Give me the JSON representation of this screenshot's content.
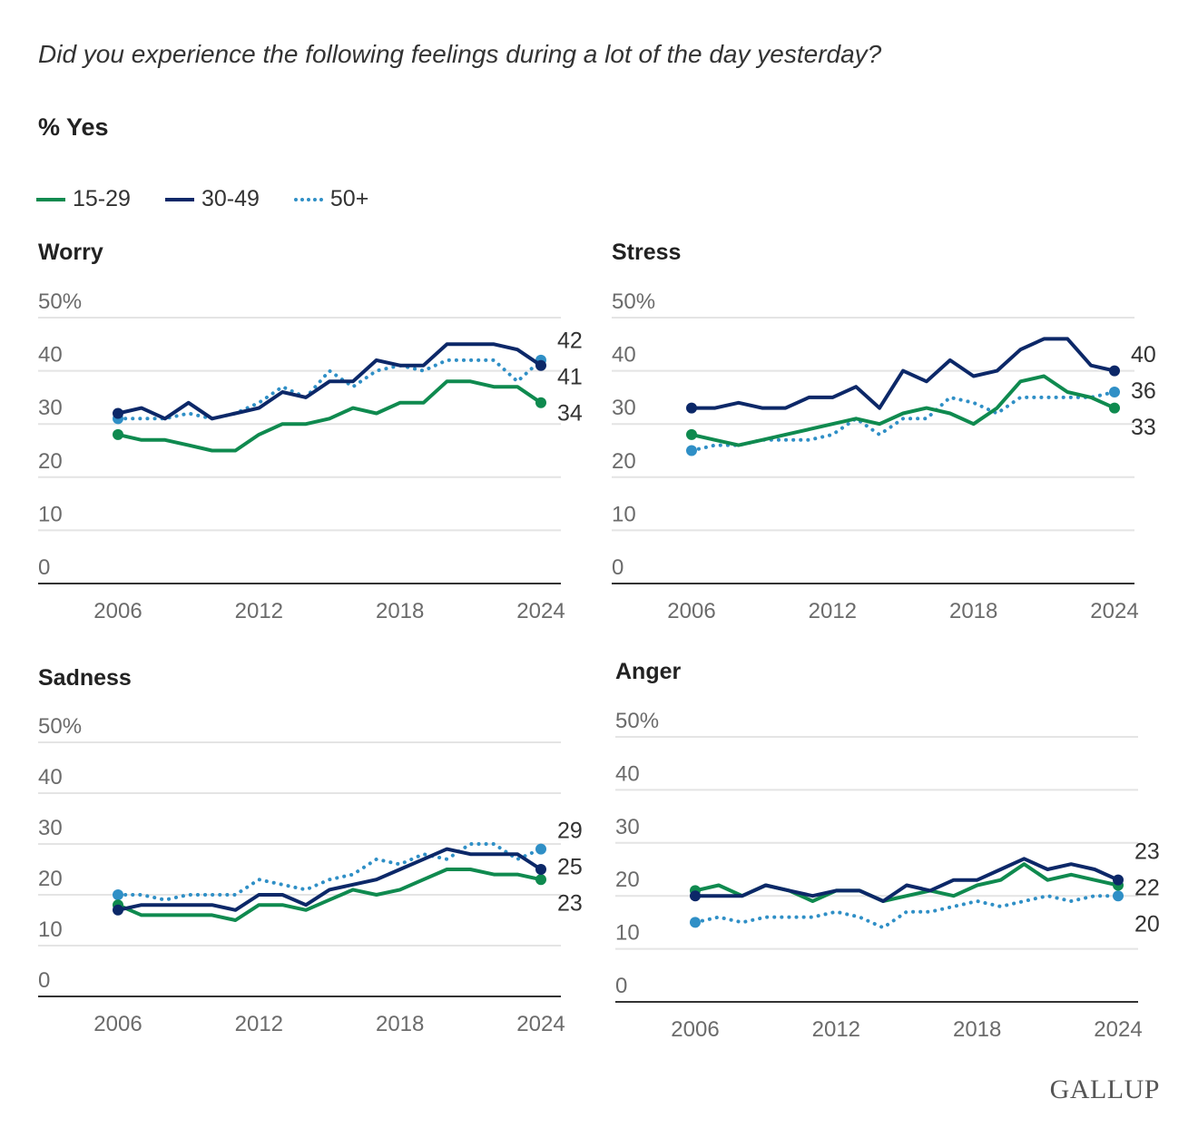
{
  "question": "Did you experience the following feelings during a lot of the day yesterday?",
  "unit_label": "% Yes",
  "logo_text": "GALLUP",
  "legend": [
    {
      "label": "15-29",
      "color": "#0f8a4f",
      "style": "solid"
    },
    {
      "label": "30-49",
      "color": "#0c2868",
      "style": "solid"
    },
    {
      "label": "50+",
      "color": "#2f8fc6",
      "style": "dotted"
    }
  ],
  "chart_data": [
    {
      "type": "line",
      "title": "Worry",
      "ylim": [
        0,
        50
      ],
      "yticks": [
        "0",
        "10",
        "20",
        "30",
        "40",
        "50%"
      ],
      "xticks": [
        "2006",
        "2012",
        "2018",
        "2024"
      ],
      "x": [
        2006,
        2007,
        2008,
        2009,
        2010,
        2011,
        2012,
        2013,
        2014,
        2015,
        2016,
        2017,
        2018,
        2019,
        2020,
        2021,
        2022,
        2023,
        2024
      ],
      "series": [
        {
          "name": "15-29",
          "values": [
            28,
            27,
            27,
            26,
            25,
            25,
            28,
            30,
            30,
            31,
            33,
            32,
            34,
            34,
            38,
            38,
            37,
            37,
            34
          ],
          "end_label": "34"
        },
        {
          "name": "30-49",
          "values": [
            32,
            33,
            31,
            34,
            31,
            32,
            33,
            36,
            35,
            38,
            38,
            42,
            41,
            41,
            45,
            45,
            45,
            44,
            41
          ],
          "end_label": "41"
        },
        {
          "name": "50+",
          "values": [
            31,
            31,
            31,
            32,
            31,
            32,
            34,
            37,
            35,
            40,
            37,
            40,
            41,
            40,
            42,
            42,
            42,
            38,
            42
          ],
          "end_label": "42"
        }
      ]
    },
    {
      "type": "line",
      "title": "Stress",
      "ylim": [
        0,
        50
      ],
      "yticks": [
        "0",
        "10",
        "20",
        "30",
        "40",
        "50%"
      ],
      "xticks": [
        "2006",
        "2012",
        "2018",
        "2024"
      ],
      "x": [
        2006,
        2007,
        2008,
        2009,
        2010,
        2011,
        2012,
        2013,
        2014,
        2015,
        2016,
        2017,
        2018,
        2019,
        2020,
        2021,
        2022,
        2023,
        2024
      ],
      "series": [
        {
          "name": "15-29",
          "values": [
            28,
            27,
            26,
            27,
            28,
            29,
            30,
            31,
            30,
            32,
            33,
            32,
            30,
            33,
            38,
            39,
            36,
            35,
            33
          ],
          "end_label": "33"
        },
        {
          "name": "30-49",
          "values": [
            33,
            33,
            34,
            33,
            33,
            35,
            35,
            37,
            33,
            40,
            38,
            42,
            39,
            40,
            44,
            46,
            46,
            41,
            40
          ],
          "end_label": "40"
        },
        {
          "name": "50+",
          "values": [
            25,
            26,
            26,
            27,
            27,
            27,
            28,
            31,
            28,
            31,
            31,
            35,
            34,
            32,
            35,
            35,
            35,
            35,
            36
          ],
          "end_label": "36"
        }
      ]
    },
    {
      "type": "line",
      "title": "Sadness",
      "ylim": [
        0,
        50
      ],
      "yticks": [
        "0",
        "10",
        "20",
        "30",
        "40",
        "50%"
      ],
      "xticks": [
        "2006",
        "2012",
        "2018",
        "2024"
      ],
      "x": [
        2006,
        2007,
        2008,
        2009,
        2010,
        2011,
        2012,
        2013,
        2014,
        2015,
        2016,
        2017,
        2018,
        2019,
        2020,
        2021,
        2022,
        2023,
        2024
      ],
      "series": [
        {
          "name": "15-29",
          "values": [
            18,
            16,
            16,
            16,
            16,
            15,
            18,
            18,
            17,
            19,
            21,
            20,
            21,
            23,
            25,
            25,
            24,
            24,
            23
          ],
          "end_label": "23"
        },
        {
          "name": "30-49",
          "values": [
            17,
            18,
            18,
            18,
            18,
            17,
            20,
            20,
            18,
            21,
            22,
            23,
            25,
            27,
            29,
            28,
            28,
            28,
            25
          ],
          "end_label": "25"
        },
        {
          "name": "50+",
          "values": [
            20,
            20,
            19,
            20,
            20,
            20,
            23,
            22,
            21,
            23,
            24,
            27,
            26,
            28,
            27,
            30,
            30,
            27,
            29
          ],
          "end_label": "29"
        }
      ]
    },
    {
      "type": "line",
      "title": "Anger",
      "ylim": [
        0,
        50
      ],
      "yticks": [
        "0",
        "10",
        "20",
        "30",
        "40",
        "50%"
      ],
      "xticks": [
        "2006",
        "2012",
        "2018",
        "2024"
      ],
      "x": [
        2006,
        2007,
        2008,
        2009,
        2010,
        2011,
        2012,
        2013,
        2014,
        2015,
        2016,
        2017,
        2018,
        2019,
        2020,
        2021,
        2022,
        2023,
        2024
      ],
      "series": [
        {
          "name": "15-29",
          "values": [
            21,
            22,
            20,
            22,
            21,
            19,
            21,
            21,
            19,
            20,
            21,
            20,
            22,
            23,
            26,
            23,
            24,
            23,
            22
          ],
          "end_label": "22"
        },
        {
          "name": "30-49",
          "values": [
            20,
            20,
            20,
            22,
            21,
            20,
            21,
            21,
            19,
            22,
            21,
            23,
            23,
            25,
            27,
            25,
            26,
            25,
            23
          ],
          "end_label": "23"
        },
        {
          "name": "50+",
          "values": [
            15,
            16,
            15,
            16,
            16,
            16,
            17,
            16,
            14,
            17,
            17,
            18,
            19,
            18,
            19,
            20,
            19,
            20,
            20
          ],
          "end_label": "20"
        }
      ]
    }
  ]
}
